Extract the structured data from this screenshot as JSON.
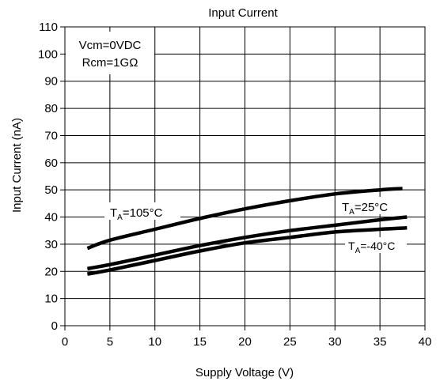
{
  "chart_data": {
    "type": "line",
    "title": "Input Current",
    "xlabel": "Supply Voltage (V)",
    "ylabel": "Input Current (nA)",
    "xlim": [
      0,
      40
    ],
    "ylim": [
      0,
      110
    ],
    "xticks": [
      0,
      5,
      10,
      15,
      20,
      25,
      30,
      35,
      40
    ],
    "yticks": [
      0,
      10,
      20,
      30,
      40,
      50,
      60,
      70,
      80,
      90,
      100,
      110
    ],
    "grid": true,
    "legend": "none",
    "conditions": [
      "Vcm=0VDC",
      "Rcm=1GΩ"
    ],
    "series": [
      {
        "name": "TA=105°C",
        "label_main": "T",
        "label_sub": "A",
        "label_rest": "=105°C",
        "x": [
          2.5,
          5,
          10,
          15,
          20,
          25,
          30,
          35,
          37.5
        ],
        "y": [
          28.5,
          31.5,
          35.5,
          39.5,
          43,
          46,
          48.5,
          50,
          50.5
        ]
      },
      {
        "name": "TA=25°C",
        "label_main": "T",
        "label_sub": "A",
        "label_rest": "=25°C",
        "x": [
          2.5,
          5,
          10,
          15,
          20,
          25,
          30,
          35,
          38
        ],
        "y": [
          21,
          22.5,
          26,
          29.5,
          32.5,
          35,
          37,
          39,
          40
        ]
      },
      {
        "name": "TA=-40°C",
        "label_main": "T",
        "label_sub": "A",
        "label_rest": "=-40°C",
        "x": [
          2.5,
          5,
          10,
          15,
          20,
          25,
          30,
          35,
          38
        ],
        "y": [
          19,
          20.5,
          24,
          27.5,
          30.5,
          32.5,
          34.5,
          35.5,
          36
        ]
      }
    ],
    "line_color": "#000000",
    "grid_color": "#000000"
  }
}
